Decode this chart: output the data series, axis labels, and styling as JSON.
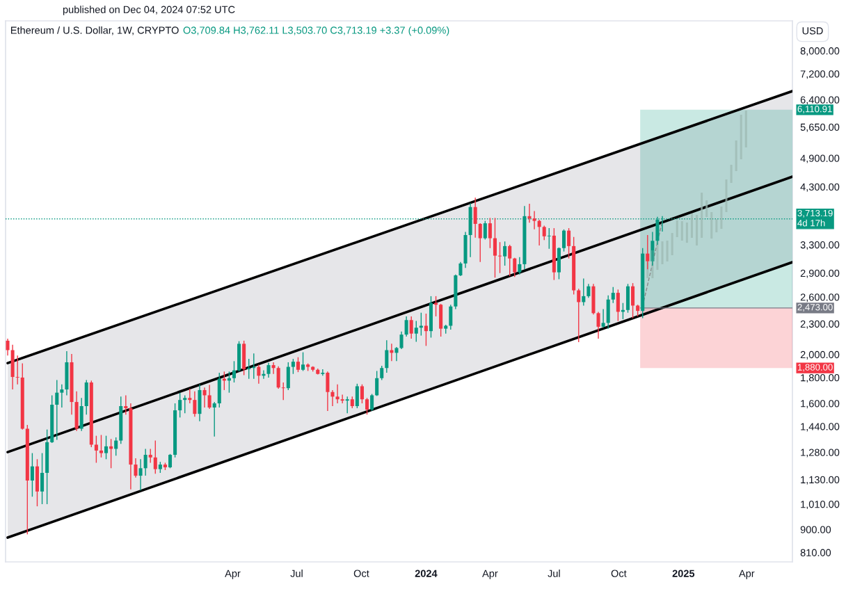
{
  "chart_data": {
    "type": "candlestick",
    "title": "Ethereum / U.S. Dollar, 1W, CRYPTO",
    "subtitle": "O3,709.84 H3,762.11 L3,503.70 C3,713.19 +3.37 (+0.09%)",
    "ylabel": "USD",
    "annotations": [
      "published on Dec 04, 2024 07:52 UTC"
    ],
    "x": [
      "2022-05-16",
      "2022-05-23",
      "2022-05-30",
      "2022-06-06",
      "2022-06-13",
      "2022-06-20",
      "2022-06-27",
      "2022-07-04",
      "2022-07-11",
      "2022-07-18",
      "2022-07-25",
      "2022-08-01",
      "2022-08-08",
      "2022-08-15",
      "2022-08-22",
      "2022-08-29",
      "2022-09-05",
      "2022-09-12",
      "2022-09-19",
      "2022-09-26",
      "2022-10-03",
      "2022-10-10",
      "2022-10-17",
      "2022-10-24",
      "2022-10-31",
      "2022-11-07",
      "2022-11-14",
      "2022-11-21",
      "2022-11-28",
      "2022-12-05",
      "2022-12-12",
      "2022-12-19",
      "2022-12-26",
      "2023-01-02",
      "2023-01-09",
      "2023-01-16",
      "2023-01-23",
      "2023-01-30",
      "2023-02-06",
      "2023-02-13",
      "2023-02-20",
      "2023-02-27",
      "2023-03-06",
      "2023-03-13",
      "2023-03-20",
      "2023-03-27",
      "2023-04-03",
      "2023-04-10",
      "2023-04-17",
      "2023-04-24",
      "2023-05-01",
      "2023-05-08",
      "2023-05-15",
      "2023-05-22",
      "2023-05-29",
      "2023-06-05",
      "2023-06-12",
      "2023-06-19",
      "2023-06-26",
      "2023-07-03",
      "2023-07-10",
      "2023-07-17",
      "2023-07-24",
      "2023-07-31",
      "2023-08-07",
      "2023-08-14",
      "2023-08-21",
      "2023-08-28",
      "2023-09-04",
      "2023-09-11",
      "2023-09-18",
      "2023-09-25",
      "2023-10-02",
      "2023-10-09",
      "2023-10-16",
      "2023-10-23",
      "2023-10-30",
      "2023-11-06",
      "2023-11-13",
      "2023-11-20",
      "2023-11-27",
      "2023-12-04",
      "2023-12-11",
      "2023-12-18",
      "2023-12-25",
      "2024-01-01",
      "2024-01-08",
      "2024-01-15",
      "2024-01-22",
      "2024-01-29",
      "2024-02-05",
      "2024-02-12",
      "2024-02-19",
      "2024-02-26",
      "2024-03-04",
      "2024-03-11",
      "2024-03-18",
      "2024-03-25",
      "2024-04-01",
      "2024-04-08",
      "2024-04-15",
      "2024-04-22",
      "2024-04-29",
      "2024-05-06",
      "2024-05-13",
      "2024-05-20",
      "2024-05-27",
      "2024-06-03",
      "2024-06-10",
      "2024-06-17",
      "2024-06-24",
      "2024-07-01",
      "2024-07-08",
      "2024-07-15",
      "2024-07-22",
      "2024-07-29",
      "2024-08-05",
      "2024-08-12",
      "2024-08-19",
      "2024-08-26",
      "2024-09-02",
      "2024-09-09",
      "2024-09-16",
      "2024-09-23",
      "2024-09-30",
      "2024-10-07",
      "2024-10-14",
      "2024-10-21",
      "2024-10-28",
      "2024-11-04",
      "2024-11-11",
      "2024-11-18",
      "2024-11-25",
      "2024-12-02"
    ],
    "ohlc": [
      [
        2130,
        2150,
        1990,
        2040
      ],
      [
        2040,
        2090,
        1705,
        1805
      ],
      [
        1805,
        1990,
        1745,
        1800
      ],
      [
        1800,
        1920,
        1420,
        1425
      ],
      [
        1425,
        1450,
        880,
        1125
      ],
      [
        1125,
        1275,
        1045,
        1200
      ],
      [
        1200,
        1240,
        1000,
        1070
      ],
      [
        1070,
        1275,
        1010,
        1165
      ],
      [
        1165,
        1420,
        1010,
        1340
      ],
      [
        1340,
        1660,
        1335,
        1590
      ],
      [
        1590,
        1780,
        1355,
        1680
      ],
      [
        1680,
        1745,
        1570,
        1705
      ],
      [
        1705,
        2030,
        1660,
        1930
      ],
      [
        1930,
        2005,
        1520,
        1610
      ],
      [
        1610,
        1690,
        1410,
        1425
      ],
      [
        1425,
        1640,
        1410,
        1580
      ],
      [
        1580,
        1780,
        1520,
        1760
      ],
      [
        1760,
        1775,
        1310,
        1325
      ],
      [
        1325,
        1380,
        1220,
        1290
      ],
      [
        1290,
        1385,
        1250,
        1275
      ],
      [
        1275,
        1380,
        1240,
        1315
      ],
      [
        1315,
        1360,
        1190,
        1300
      ],
      [
        1300,
        1370,
        1260,
        1350
      ],
      [
        1350,
        1650,
        1330,
        1580
      ],
      [
        1580,
        1660,
        1520,
        1565
      ],
      [
        1565,
        1600,
        1080,
        1210
      ],
      [
        1210,
        1245,
        1140,
        1150
      ],
      [
        1150,
        1240,
        1075,
        1190
      ],
      [
        1190,
        1300,
        1150,
        1265
      ],
      [
        1265,
        1300,
        1220,
        1250
      ],
      [
        1250,
        1350,
        1160,
        1185
      ],
      [
        1185,
        1225,
        1165,
        1210
      ],
      [
        1210,
        1220,
        1180,
        1195
      ],
      [
        1195,
        1270,
        1190,
        1265
      ],
      [
        1265,
        1600,
        1250,
        1550
      ],
      [
        1550,
        1680,
        1500,
        1625
      ],
      [
        1625,
        1660,
        1530,
        1640
      ],
      [
        1640,
        1710,
        1600,
        1625
      ],
      [
        1625,
        1690,
        1505,
        1525
      ],
      [
        1525,
        1745,
        1475,
        1700
      ],
      [
        1700,
        1720,
        1570,
        1660
      ],
      [
        1660,
        1740,
        1560,
        1570
      ],
      [
        1570,
        1610,
        1375,
        1600
      ],
      [
        1600,
        1840,
        1570,
        1790
      ],
      [
        1790,
        1850,
        1700,
        1775
      ],
      [
        1775,
        1850,
        1680,
        1795
      ],
      [
        1795,
        1940,
        1760,
        1860
      ],
      [
        1860,
        2125,
        1850,
        2100
      ],
      [
        2100,
        2130,
        1820,
        1870
      ],
      [
        1870,
        1960,
        1790,
        1880
      ],
      [
        1880,
        2010,
        1790,
        1890
      ],
      [
        1890,
        1910,
        1750,
        1815
      ],
      [
        1815,
        1860,
        1790,
        1830
      ],
      [
        1830,
        1925,
        1800,
        1905
      ],
      [
        1905,
        1930,
        1830,
        1880
      ],
      [
        1880,
        1895,
        1710,
        1720
      ],
      [
        1720,
        1760,
        1625,
        1715
      ],
      [
        1715,
        1930,
        1700,
        1890
      ],
      [
        1890,
        1960,
        1830,
        1935
      ],
      [
        1935,
        1975,
        1845,
        1865
      ],
      [
        1865,
        2020,
        1855,
        1910
      ],
      [
        1910,
        1920,
        1855,
        1890
      ],
      [
        1890,
        1895,
        1850,
        1865
      ],
      [
        1865,
        1875,
        1825,
        1830
      ],
      [
        1830,
        1870,
        1815,
        1840
      ],
      [
        1840,
        1850,
        1545,
        1685
      ],
      [
        1685,
        1700,
        1580,
        1650
      ],
      [
        1650,
        1745,
        1600,
        1630
      ],
      [
        1630,
        1665,
        1600,
        1620
      ],
      [
        1620,
        1650,
        1530,
        1630
      ],
      [
        1630,
        1650,
        1565,
        1580
      ],
      [
        1580,
        1750,
        1565,
        1730
      ],
      [
        1730,
        1745,
        1600,
        1630
      ],
      [
        1630,
        1640,
        1520,
        1555
      ],
      [
        1555,
        1670,
        1545,
        1660
      ],
      [
        1660,
        1855,
        1655,
        1795
      ],
      [
        1795,
        1900,
        1780,
        1880
      ],
      [
        1880,
        2135,
        1840,
        2040
      ],
      [
        2040,
        2100,
        1940,
        2015
      ],
      [
        2015,
        2070,
        1940,
        2060
      ],
      [
        2060,
        2220,
        2050,
        2190
      ],
      [
        2190,
        2380,
        2170,
        2340
      ],
      [
        2340,
        2380,
        2150,
        2200
      ],
      [
        2200,
        2330,
        2120,
        2260
      ],
      [
        2260,
        2420,
        2180,
        2280
      ],
      [
        2280,
        2410,
        2080,
        2225
      ],
      [
        2225,
        2610,
        2160,
        2530
      ],
      [
        2530,
        2610,
        2380,
        2510
      ],
      [
        2510,
        2520,
        2170,
        2250
      ],
      [
        2250,
        2290,
        2200,
        2280
      ],
      [
        2280,
        2510,
        2240,
        2490
      ],
      [
        2490,
        2880,
        2460,
        2870
      ],
      [
        2870,
        3050,
        2860,
        3030
      ],
      [
        3030,
        3500,
        2970,
        3450
      ],
      [
        3450,
        3990,
        3120,
        3920
      ],
      [
        3920,
        4090,
        3410,
        3630
      ],
      [
        3630,
        3640,
        3050,
        3400
      ],
      [
        3400,
        3680,
        3380,
        3640
      ],
      [
        3640,
        3730,
        3250,
        3400
      ],
      [
        3400,
        3730,
        2840,
        3140
      ],
      [
        3140,
        3340,
        2900,
        3130
      ],
      [
        3130,
        3350,
        3000,
        3280
      ],
      [
        3280,
        3300,
        2860,
        3100
      ],
      [
        3100,
        3110,
        2850,
        2910
      ],
      [
        2910,
        3120,
        2880,
        3020
      ],
      [
        3020,
        3940,
        2950,
        3760
      ],
      [
        3760,
        3980,
        3650,
        3720
      ],
      [
        3720,
        3850,
        3540,
        3680
      ],
      [
        3680,
        3700,
        3290,
        3580
      ],
      [
        3580,
        3600,
        3370,
        3430
      ],
      [
        3430,
        3560,
        3240,
        3440
      ],
      [
        3440,
        3560,
        2810,
        2910
      ],
      [
        2910,
        3260,
        2820,
        3250
      ],
      [
        3250,
        3540,
        3200,
        3520
      ],
      [
        3520,
        3560,
        3100,
        3280
      ],
      [
        3280,
        3420,
        2630,
        2680
      ],
      [
        2680,
        2700,
        2115,
        2540
      ],
      [
        2540,
        2830,
        2500,
        2610
      ],
      [
        2610,
        2760,
        2590,
        2730
      ],
      [
        2730,
        2760,
        2400,
        2415
      ],
      [
        2415,
        2430,
        2150,
        2270
      ],
      [
        2270,
        2460,
        2260,
        2310
      ],
      [
        2310,
        2620,
        2250,
        2570
      ],
      [
        2570,
        2720,
        2530,
        2650
      ],
      [
        2650,
        2690,
        2330,
        2430
      ],
      [
        2430,
        2530,
        2350,
        2450
      ],
      [
        2450,
        2760,
        2420,
        2730
      ],
      [
        2730,
        2770,
        2360,
        2500
      ],
      [
        2500,
        2510,
        2380,
        2440
      ],
      [
        2440,
        3250,
        2360,
        3170
      ],
      [
        3170,
        3450,
        2950,
        3060
      ],
      [
        3060,
        3500,
        3000,
        3360
      ],
      [
        3360,
        3750,
        3300,
        3700
      ],
      [
        3709.84,
        3762.11,
        3503.7,
        3713.19
      ]
    ],
    "series": [
      {
        "type": "line",
        "x": [
          "2022-05-16",
          "2025-06-05"
        ],
        "values": [
          1923,
          6654
        ],
        "color": "#000000"
      },
      {
        "type": "line",
        "x": [
          "2022-05-16",
          "2025-06-05"
        ],
        "values": [
          1281,
          4503
        ],
        "lower": [
          867,
          3048
        ],
        "upper": [
          1923,
          6654
        ],
        "color": "#000000"
      },
      {
        "type": "line",
        "x": [
          "2022-05-16",
          "2025-06-05"
        ],
        "values": [
          867,
          3048
        ],
        "color": "#000000"
      },
      {
        "type": "line",
        "x": [
          "2024-11-04",
          "2024-12-02"
        ],
        "values": [
          2495,
          3675
        ],
        "color": "#888888",
        "line_style": "dashed"
      },
      {
        "type": "bar",
        "x": [
          "2024-11-11",
          "2024-11-18",
          "2024-11-25",
          "2024-12-02",
          "2024-12-09",
          "2024-12-16",
          "2024-12-23",
          "2024-12-30",
          "2025-01-06",
          "2025-01-13",
          "2025-01-20",
          "2025-01-27",
          "2025-02-03",
          "2025-02-10",
          "2025-02-17",
          "2025-02-24",
          "2025-03-03",
          "2025-03-10",
          "2025-03-17",
          "2025-03-24",
          "2025-03-31"
        ],
        "base": [
          2833,
          2833,
          2943,
          3019,
          3058,
          3146,
          3417,
          3363,
          3330,
          3406,
          3289,
          3406,
          3746,
          3395,
          3493,
          3549,
          3831,
          4377,
          4619,
          4875,
          5146
        ],
        "values": [
          215,
          384,
          409,
          333,
          305,
          336,
          270,
          312,
          322,
          400,
          493,
          780,
          296,
          436,
          218,
          380,
          615,
          377,
          693,
          1099,
          943
        ],
        "color": "#9db8b2"
      }
    ],
    "bands": [
      {
        "axis": "y",
        "from": 6110.91,
        "to": 2473,
        "label": "6,110.91",
        "color": "#089981"
      },
      {
        "axis": "y",
        "from": 1880,
        "to": 2473,
        "label": "1,880.00",
        "color": "#f23645"
      }
    ],
    "ref_lines": [
      {
        "axis": "y",
        "value": 3713.19,
        "label": "3,713.19\n4d 17h",
        "color": "#089981",
        "line_style": "dotted"
      },
      {
        "axis": "y",
        "value": 2473,
        "label": "2,473.00",
        "color": "#787b86",
        "line_style": "solid"
      }
    ],
    "log": true,
    "xlim": [
      "2022-05-13",
      "2025-06-05"
    ],
    "xticks": [
      {
        "value": "2023-04-01",
        "label": "Apr"
      },
      {
        "value": "2023-07-01",
        "label": "Jul"
      },
      {
        "value": "2023-10-01",
        "label": "Oct"
      },
      {
        "value": "2024-01-01",
        "label": "2024"
      },
      {
        "value": "2024-04-01",
        "label": "Apr"
      },
      {
        "value": "2024-07-01",
        "label": "Jul"
      },
      {
        "value": "2024-10-01",
        "label": "Oct"
      },
      {
        "value": "2025-01-01",
        "label": "2025"
      },
      {
        "value": "2025-04-01",
        "label": "Apr"
      }
    ],
    "ylim": [
      776,
      9170
    ],
    "yticks": [
      {
        "value": 810,
        "label": "810.00"
      },
      {
        "value": 900,
        "label": "900.00"
      },
      {
        "value": 1010,
        "label": "1,010.00"
      },
      {
        "value": 1130,
        "label": "1,130.00"
      },
      {
        "value": 1280,
        "label": "1,280.00"
      },
      {
        "value": 1440,
        "label": "1,440.00"
      },
      {
        "value": 1600,
        "label": "1,600.00"
      },
      {
        "value": 1800,
        "label": "1,800.00"
      },
      {
        "value": 2000,
        "label": "2,000.00"
      },
      {
        "value": 2300,
        "label": "2,300.00"
      },
      {
        "value": 2600,
        "label": "2,600.00"
      },
      {
        "value": 2900,
        "label": "2,900.00"
      },
      {
        "value": 3300,
        "label": "3,300.00"
      },
      {
        "value": 4300,
        "label": "4,300.00"
      },
      {
        "value": 4900,
        "label": "4,900.00"
      },
      {
        "value": 5650,
        "label": "5,650.00"
      },
      {
        "value": 6400,
        "label": "6,400.00"
      },
      {
        "value": 7200,
        "label": "7,200.00"
      },
      {
        "value": 8000,
        "label": "8,000.00"
      }
    ]
  }
}
